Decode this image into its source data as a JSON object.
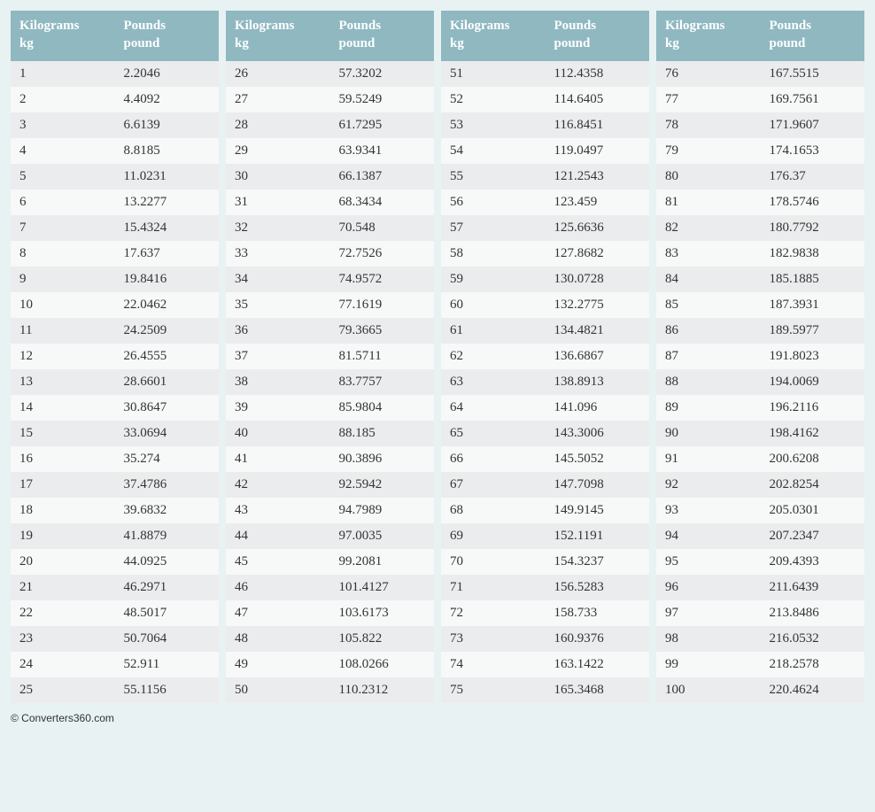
{
  "page_background": "#e8f2f2",
  "header_bg": "#8fb8c1",
  "header_text_color": "#ffffff",
  "row_odd_bg": "#ebeced",
  "row_even_bg": "#f7f8f8",
  "cell_text_color": "#333333",
  "columns_per_panel": 2,
  "headers": {
    "kg_line1": "Kilograms",
    "kg_line2": "kg",
    "lb_line1": "Pounds",
    "lb_line2": "pound"
  },
  "footer": "© Converters360.com",
  "panels": [
    {
      "rows": [
        {
          "kg": "1",
          "lb": "2.2046"
        },
        {
          "kg": "2",
          "lb": "4.4092"
        },
        {
          "kg": "3",
          "lb": "6.6139"
        },
        {
          "kg": "4",
          "lb": "8.8185"
        },
        {
          "kg": "5",
          "lb": "11.0231"
        },
        {
          "kg": "6",
          "lb": "13.2277"
        },
        {
          "kg": "7",
          "lb": "15.4324"
        },
        {
          "kg": "8",
          "lb": "17.637"
        },
        {
          "kg": "9",
          "lb": "19.8416"
        },
        {
          "kg": "10",
          "lb": "22.0462"
        },
        {
          "kg": "11",
          "lb": "24.2509"
        },
        {
          "kg": "12",
          "lb": "26.4555"
        },
        {
          "kg": "13",
          "lb": "28.6601"
        },
        {
          "kg": "14",
          "lb": "30.8647"
        },
        {
          "kg": "15",
          "lb": "33.0694"
        },
        {
          "kg": "16",
          "lb": "35.274"
        },
        {
          "kg": "17",
          "lb": "37.4786"
        },
        {
          "kg": "18",
          "lb": "39.6832"
        },
        {
          "kg": "19",
          "lb": "41.8879"
        },
        {
          "kg": "20",
          "lb": "44.0925"
        },
        {
          "kg": "21",
          "lb": "46.2971"
        },
        {
          "kg": "22",
          "lb": "48.5017"
        },
        {
          "kg": "23",
          "lb": "50.7064"
        },
        {
          "kg": "24",
          "lb": "52.911"
        },
        {
          "kg": "25",
          "lb": "55.1156"
        }
      ]
    },
    {
      "rows": [
        {
          "kg": "26",
          "lb": "57.3202"
        },
        {
          "kg": "27",
          "lb": "59.5249"
        },
        {
          "kg": "28",
          "lb": "61.7295"
        },
        {
          "kg": "29",
          "lb": "63.9341"
        },
        {
          "kg": "30",
          "lb": "66.1387"
        },
        {
          "kg": "31",
          "lb": "68.3434"
        },
        {
          "kg": "32",
          "lb": "70.548"
        },
        {
          "kg": "33",
          "lb": "72.7526"
        },
        {
          "kg": "34",
          "lb": "74.9572"
        },
        {
          "kg": "35",
          "lb": "77.1619"
        },
        {
          "kg": "36",
          "lb": "79.3665"
        },
        {
          "kg": "37",
          "lb": "81.5711"
        },
        {
          "kg": "38",
          "lb": "83.7757"
        },
        {
          "kg": "39",
          "lb": "85.9804"
        },
        {
          "kg": "40",
          "lb": "88.185"
        },
        {
          "kg": "41",
          "lb": "90.3896"
        },
        {
          "kg": "42",
          "lb": "92.5942"
        },
        {
          "kg": "43",
          "lb": "94.7989"
        },
        {
          "kg": "44",
          "lb": "97.0035"
        },
        {
          "kg": "45",
          "lb": "99.2081"
        },
        {
          "kg": "46",
          "lb": "101.4127"
        },
        {
          "kg": "47",
          "lb": "103.6173"
        },
        {
          "kg": "48",
          "lb": "105.822"
        },
        {
          "kg": "49",
          "lb": "108.0266"
        },
        {
          "kg": "50",
          "lb": "110.2312"
        }
      ]
    },
    {
      "rows": [
        {
          "kg": "51",
          "lb": "112.4358"
        },
        {
          "kg": "52",
          "lb": "114.6405"
        },
        {
          "kg": "53",
          "lb": "116.8451"
        },
        {
          "kg": "54",
          "lb": "119.0497"
        },
        {
          "kg": "55",
          "lb": "121.2543"
        },
        {
          "kg": "56",
          "lb": "123.459"
        },
        {
          "kg": "57",
          "lb": "125.6636"
        },
        {
          "kg": "58",
          "lb": "127.8682"
        },
        {
          "kg": "59",
          "lb": "130.0728"
        },
        {
          "kg": "60",
          "lb": "132.2775"
        },
        {
          "kg": "61",
          "lb": "134.4821"
        },
        {
          "kg": "62",
          "lb": "136.6867"
        },
        {
          "kg": "63",
          "lb": "138.8913"
        },
        {
          "kg": "64",
          "lb": "141.096"
        },
        {
          "kg": "65",
          "lb": "143.3006"
        },
        {
          "kg": "66",
          "lb": "145.5052"
        },
        {
          "kg": "67",
          "lb": "147.7098"
        },
        {
          "kg": "68",
          "lb": "149.9145"
        },
        {
          "kg": "69",
          "lb": "152.1191"
        },
        {
          "kg": "70",
          "lb": "154.3237"
        },
        {
          "kg": "71",
          "lb": "156.5283"
        },
        {
          "kg": "72",
          "lb": "158.733"
        },
        {
          "kg": "73",
          "lb": "160.9376"
        },
        {
          "kg": "74",
          "lb": "163.1422"
        },
        {
          "kg": "75",
          "lb": "165.3468"
        }
      ]
    },
    {
      "rows": [
        {
          "kg": "76",
          "lb": "167.5515"
        },
        {
          "kg": "77",
          "lb": "169.7561"
        },
        {
          "kg": "78",
          "lb": "171.9607"
        },
        {
          "kg": "79",
          "lb": "174.1653"
        },
        {
          "kg": "80",
          "lb": "176.37"
        },
        {
          "kg": "81",
          "lb": "178.5746"
        },
        {
          "kg": "82",
          "lb": "180.7792"
        },
        {
          "kg": "83",
          "lb": "182.9838"
        },
        {
          "kg": "84",
          "lb": "185.1885"
        },
        {
          "kg": "85",
          "lb": "187.3931"
        },
        {
          "kg": "86",
          "lb": "189.5977"
        },
        {
          "kg": "87",
          "lb": "191.8023"
        },
        {
          "kg": "88",
          "lb": "194.0069"
        },
        {
          "kg": "89",
          "lb": "196.2116"
        },
        {
          "kg": "90",
          "lb": "198.4162"
        },
        {
          "kg": "91",
          "lb": "200.6208"
        },
        {
          "kg": "92",
          "lb": "202.8254"
        },
        {
          "kg": "93",
          "lb": "205.0301"
        },
        {
          "kg": "94",
          "lb": "207.2347"
        },
        {
          "kg": "95",
          "lb": "209.4393"
        },
        {
          "kg": "96",
          "lb": "211.6439"
        },
        {
          "kg": "97",
          "lb": "213.8486"
        },
        {
          "kg": "98",
          "lb": "216.0532"
        },
        {
          "kg": "99",
          "lb": "218.2578"
        },
        {
          "kg": "100",
          "lb": "220.4624"
        }
      ]
    }
  ]
}
